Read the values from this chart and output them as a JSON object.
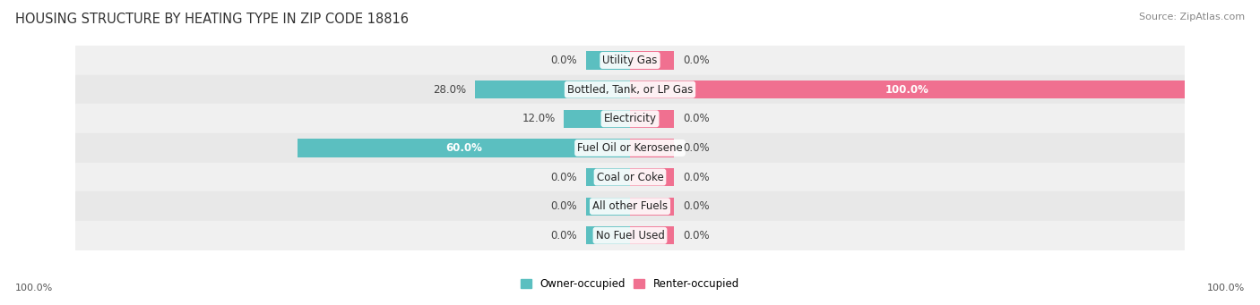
{
  "title": "HOUSING STRUCTURE BY HEATING TYPE IN ZIP CODE 18816",
  "source": "Source: ZipAtlas.com",
  "categories": [
    "Utility Gas",
    "Bottled, Tank, or LP Gas",
    "Electricity",
    "Fuel Oil or Kerosene",
    "Coal or Coke",
    "All other Fuels",
    "No Fuel Used"
  ],
  "owner_values": [
    0.0,
    28.0,
    12.0,
    60.0,
    0.0,
    0.0,
    0.0
  ],
  "renter_values": [
    0.0,
    100.0,
    0.0,
    0.0,
    0.0,
    0.0,
    0.0
  ],
  "owner_color": "#5bbfc0",
  "renter_color": "#f07090",
  "row_bg_even": "#f0f0f0",
  "row_bg_odd": "#e8e8e8",
  "max_value": 100.0,
  "stub_value": 8.0,
  "title_fontsize": 10.5,
  "cat_fontsize": 8.5,
  "val_fontsize": 8.5,
  "tick_fontsize": 8.0,
  "source_fontsize": 8.0,
  "figsize": [
    14.06,
    3.41
  ],
  "dpi": 100
}
